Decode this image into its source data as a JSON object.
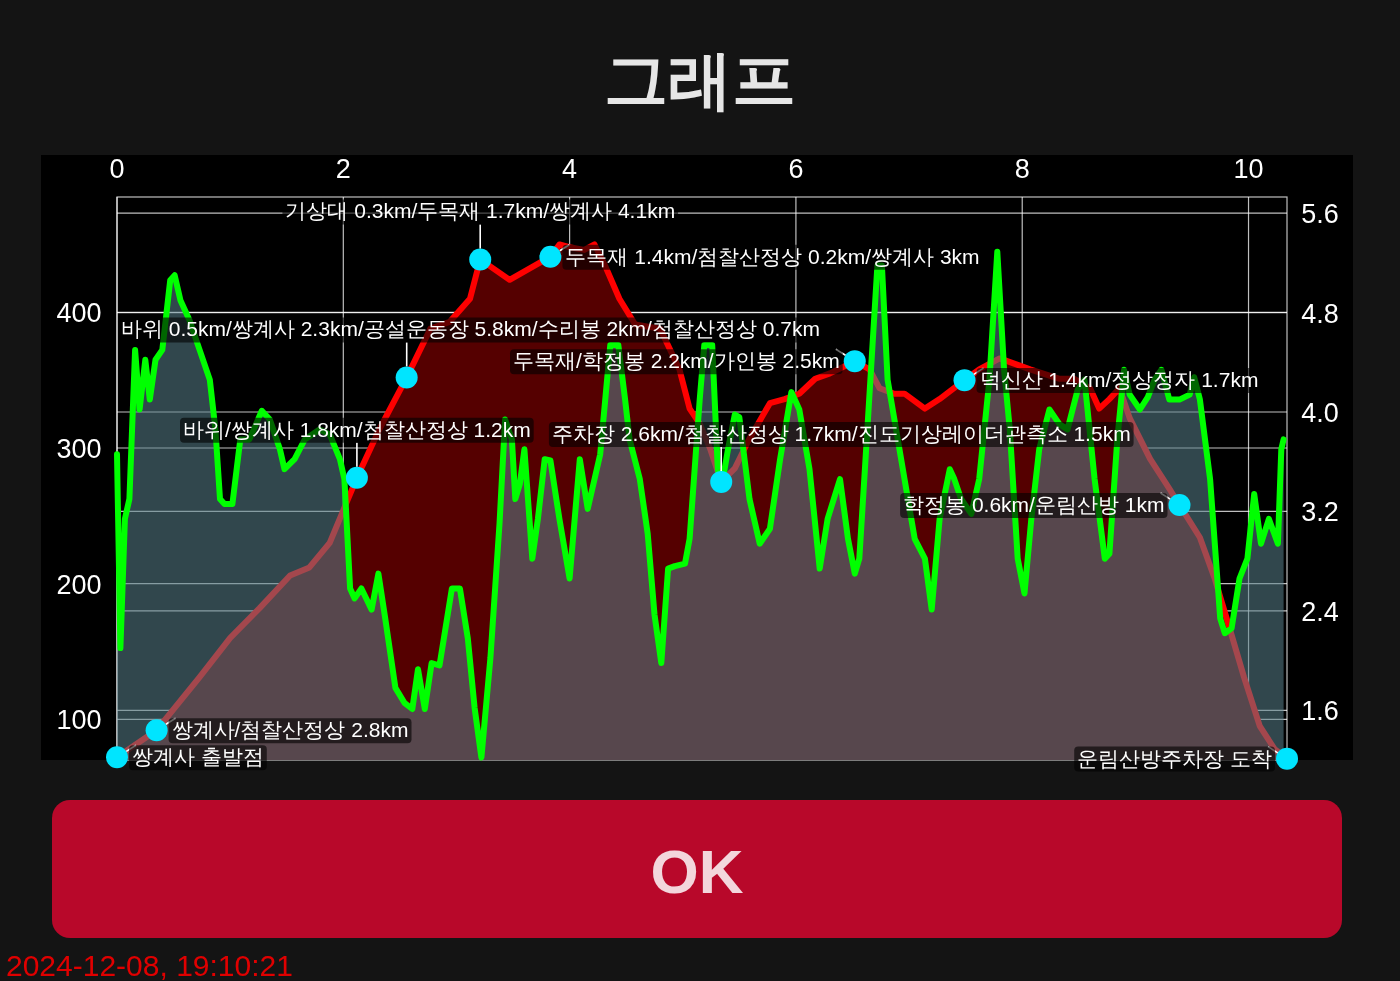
{
  "chart_data": {
    "type": "area",
    "title": "그래프",
    "xlim": [
      0,
      10.34
    ],
    "xticks": [
      0,
      2,
      4,
      6,
      8,
      10
    ],
    "ylim": [
      70,
      485
    ],
    "yticks": [
      100,
      200,
      300,
      400
    ],
    "y2lim": [
      1.2,
      5.73
    ],
    "y2ticks": [
      1.6,
      2.4,
      3.2,
      {
        "value": 4,
        "label": "4.0"
      },
      4.8,
      5.6
    ],
    "grid": true,
    "series": [
      {
        "axis": "y",
        "color": "#ff0000",
        "x": [
          0,
          0.35,
          0.73,
          1.0,
          1.26,
          1.53,
          1.7,
          1.88,
          2.01,
          2.12,
          2.32,
          2.56,
          2.77,
          2.94,
          3.12,
          3.21,
          3.47,
          3.83,
          3.91,
          4.0,
          4.13,
          4.22,
          4.31,
          4.44,
          4.58,
          4.8,
          4.97,
          5.06,
          5.15,
          5.24,
          5.34,
          5.46,
          5.59,
          5.77,
          5.9,
          6.03,
          6.17,
          6.3,
          6.52,
          6.65,
          6.74,
          6.87,
          6.96,
          7.14,
          7.27,
          7.49,
          7.62,
          7.8,
          8.07,
          8.33,
          8.46,
          8.6,
          8.68,
          8.77,
          8.86,
          8.95,
          9.13,
          9.3,
          9.39,
          9.57,
          9.7,
          9.83,
          9.96,
          10.1,
          10.23,
          10.34
        ],
        "values": [
          72,
          92,
          131,
          160,
          182,
          206,
          212,
          230,
          256,
          278,
          314,
          352,
          388,
          393,
          410,
          439,
          424,
          441,
          450,
          448,
          446,
          450,
          435,
          410,
          391,
          388,
          358,
          329,
          318,
          300,
          275,
          285,
          307,
          333,
          336,
          340,
          351,
          355,
          364,
          358,
          344,
          340,
          340,
          329,
          336,
          350,
          358,
          366,
          358,
          351,
          351,
          344,
          329,
          336,
          344,
          322,
          292,
          270,
          258,
          234,
          204,
          168,
          131,
          95,
          78,
          71
        ]
      },
      {
        "axis": "y2",
        "color": "#00ff00",
        "x": [
          0,
          0.03,
          0.07,
          0.11,
          0.16,
          0.2,
          0.25,
          0.29,
          0.34,
          0.4,
          0.47,
          0.51,
          0.56,
          0.64,
          0.73,
          0.82,
          0.87,
          0.91,
          0.95,
          1.02,
          1.09,
          1.17,
          1.28,
          1.35,
          1.44,
          1.48,
          1.57,
          1.66,
          1.79,
          1.88,
          1.97,
          2.01,
          2.06,
          2.1,
          2.16,
          2.25,
          2.31,
          2.37,
          2.46,
          2.54,
          2.61,
          2.66,
          2.72,
          2.78,
          2.85,
          2.96,
          3.03,
          3.1,
          3.16,
          3.22,
          3.3,
          3.38,
          3.43,
          3.49,
          3.52,
          3.56,
          3.6,
          3.67,
          3.72,
          3.78,
          3.83,
          3.91,
          4.0,
          4.09,
          4.16,
          4.27,
          4.36,
          4.43,
          4.49,
          4.53,
          4.62,
          4.69,
          4.75,
          4.81,
          4.87,
          4.93,
          5.02,
          5.06,
          5.15,
          5.19,
          5.26,
          5.31,
          5.34,
          5.4,
          5.46,
          5.5,
          5.59,
          5.68,
          5.77,
          5.86,
          5.96,
          6.03,
          6.12,
          6.21,
          6.28,
          6.39,
          6.46,
          6.52,
          6.56,
          6.61,
          6.72,
          6.76,
          6.81,
          6.87,
          6.96,
          7.05,
          7.14,
          7.2,
          7.27,
          7.36,
          7.4,
          7.46,
          7.55,
          7.62,
          7.71,
          7.78,
          7.84,
          7.89,
          7.96,
          8.02,
          8.08,
          8.15,
          8.24,
          8.33,
          8.4,
          8.49,
          8.55,
          8.64,
          8.73,
          8.77,
          8.84,
          8.9,
          8.95,
          9.04,
          9.11,
          9.17,
          9.23,
          9.3,
          9.39,
          9.48,
          9.52,
          9.57,
          9.66,
          9.75,
          9.79,
          9.85,
          9.92,
          9.99,
          10.05,
          10.11,
          10.18,
          10.26,
          10.29,
          10.31
        ],
        "values": [
          3.66,
          2.1,
          3.14,
          3.3,
          4.5,
          4.02,
          4.42,
          4.1,
          4.42,
          4.5,
          5.06,
          5.1,
          4.9,
          4.74,
          4.5,
          4.26,
          3.86,
          3.3,
          3.26,
          3.26,
          3.78,
          3.78,
          4.01,
          3.94,
          3.7,
          3.54,
          3.62,
          3.78,
          3.86,
          3.82,
          3.62,
          3.46,
          2.58,
          2.5,
          2.58,
          2.41,
          2.7,
          2.34,
          1.78,
          1.66,
          1.61,
          1.93,
          1.61,
          1.98,
          1.96,
          2.58,
          2.58,
          2.18,
          1.62,
          1.22,
          2.02,
          3.1,
          3.94,
          3.78,
          3.3,
          3.42,
          3.7,
          2.82,
          3.14,
          3.62,
          3.61,
          3.14,
          2.66,
          3.62,
          3.22,
          3.66,
          4.54,
          4.54,
          4.1,
          3.78,
          3.46,
          3.02,
          2.37,
          1.98,
          2.74,
          2.76,
          2.78,
          2.98,
          4.1,
          4.54,
          4.54,
          3.54,
          3.38,
          3.7,
          3.98,
          3.96,
          3.3,
          2.94,
          3.06,
          3.62,
          4.16,
          4.02,
          3.54,
          2.74,
          3.14,
          3.46,
          2.98,
          2.7,
          2.82,
          3.54,
          5.18,
          5.18,
          4.26,
          3.94,
          3.46,
          2.98,
          2.82,
          2.41,
          3.14,
          3.54,
          3.46,
          3.3,
          3.18,
          3.46,
          4.26,
          5.29,
          4.34,
          3.86,
          2.82,
          2.54,
          3.14,
          3.7,
          4.02,
          3.9,
          3.86,
          4.18,
          4.26,
          3.46,
          2.82,
          2.86,
          3.78,
          4.34,
          4.14,
          4.02,
          4.12,
          4.26,
          4.34,
          4.1,
          4.1,
          4.14,
          4.28,
          4.1,
          3.46,
          2.34,
          2.22,
          2.26,
          2.66,
          2.82,
          3.34,
          2.94,
          3.14,
          2.94,
          3.7,
          3.78
        ]
      },
      {
        "type": "scatter",
        "axis": "y",
        "color": "#00e5ff",
        "marker": "circle",
        "x": [
          0,
          0.35,
          2.12,
          2.56,
          3.21,
          3.83,
          5.34,
          6.52,
          7.49,
          9.39,
          10.34
        ],
        "values": [
          72,
          92,
          278,
          352,
          439,
          441,
          275,
          364,
          350,
          258,
          71
        ]
      }
    ],
    "annotations": [
      {
        "text": "쌍계사 출발점",
        "x": 0,
        "y": 72
      },
      {
        "text": "쌍계사/첨찰산정상 2.8km",
        "x": 0.35,
        "y": 92
      },
      {
        "text": "바위/쌍계사 1.8km/첨찰산정상 1.2km",
        "x": 2.12,
        "y": 278
      },
      {
        "text": "바위 0.5km/쌍계사 2.3km/공설운동장 5.8km/수리봉 2km/첨찰산정상 0.7km",
        "x": 2.56,
        "y": 352
      },
      {
        "text": "기상대 0.3km/두목재 1.7km/쌍계사 4.1km",
        "x": 3.21,
        "y": 439
      },
      {
        "text": "두목재 1.4km/첨찰산정상 0.2km/쌍계사 3km",
        "x": 3.83,
        "y": 441
      },
      {
        "text": "주차장 2.6km/첨찰산정상 1.7km/진도기상레이더관측소 1.5km",
        "x": 5.34,
        "y": 275
      },
      {
        "text": "두목재/학정봉 2.2km/가인봉 2.5km",
        "x": 6.52,
        "y": 364
      },
      {
        "text": "덕신산 1.4km/정상정자 1.7km",
        "x": 7.49,
        "y": 350
      },
      {
        "text": "학정봉 0.6km/운림산방 1km",
        "x": 9.39,
        "y": 258
      },
      {
        "text": "운림산방주차장 도착",
        "x": 10.34,
        "y": 71
      },
      "OK",
      "2024-12-08, 19:10:21"
    ]
  }
}
